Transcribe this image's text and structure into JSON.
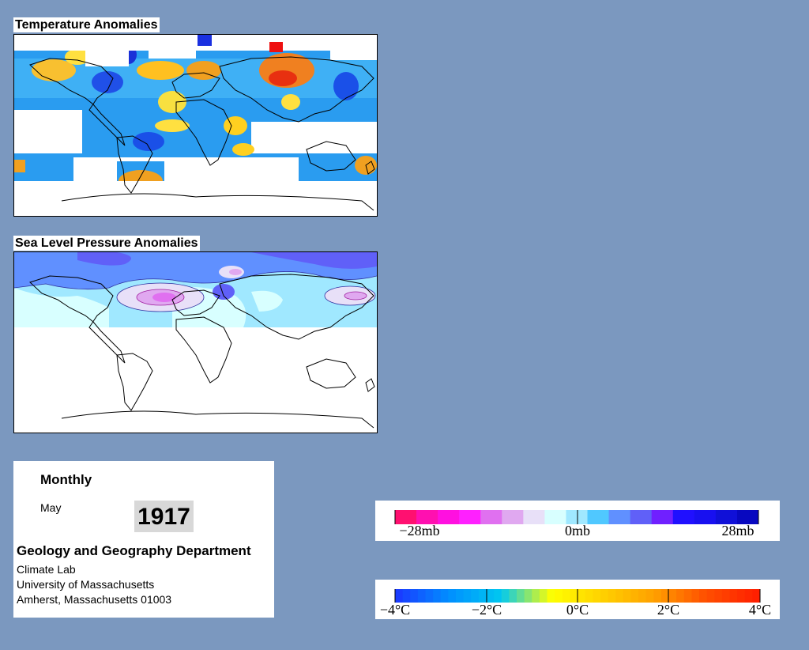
{
  "temperature_panel": {
    "title": "Temperature Anomalies"
  },
  "pressure_panel": {
    "title": "Sea Level Pressure Anomalies"
  },
  "info": {
    "period": "Monthly",
    "month": "May",
    "year": "1917",
    "department": "Geology and Geography Department",
    "lab": "Climate Lab",
    "university": "University of Massachusetts",
    "address": "Amherst, Massachusetts 01003"
  },
  "pressure_legend": {
    "labels": [
      "−28mb",
      "0mb",
      "28mb"
    ],
    "colors": [
      "#ff1070",
      "#ff10b0",
      "#ff10e0",
      "#ff20ff",
      "#e070f0",
      "#e0a8f0",
      "#e8e0f8",
      "#d8ffff",
      "#a0e8ff",
      "#50c8ff",
      "#6090ff",
      "#6060f8",
      "#7020ff",
      "#2010ff",
      "#1810f0",
      "#1010d8",
      "#0808c0"
    ]
  },
  "temperature_legend": {
    "labels": [
      "−4°C",
      "−2°C",
      "0°C",
      "2°C",
      "4°C"
    ],
    "colors": [
      "#1a3cff",
      "#0090ff",
      "#00c8f0",
      "#ffff00",
      "#ffd000",
      "#ffa000",
      "#ff5000",
      "#ff2000"
    ]
  }
}
